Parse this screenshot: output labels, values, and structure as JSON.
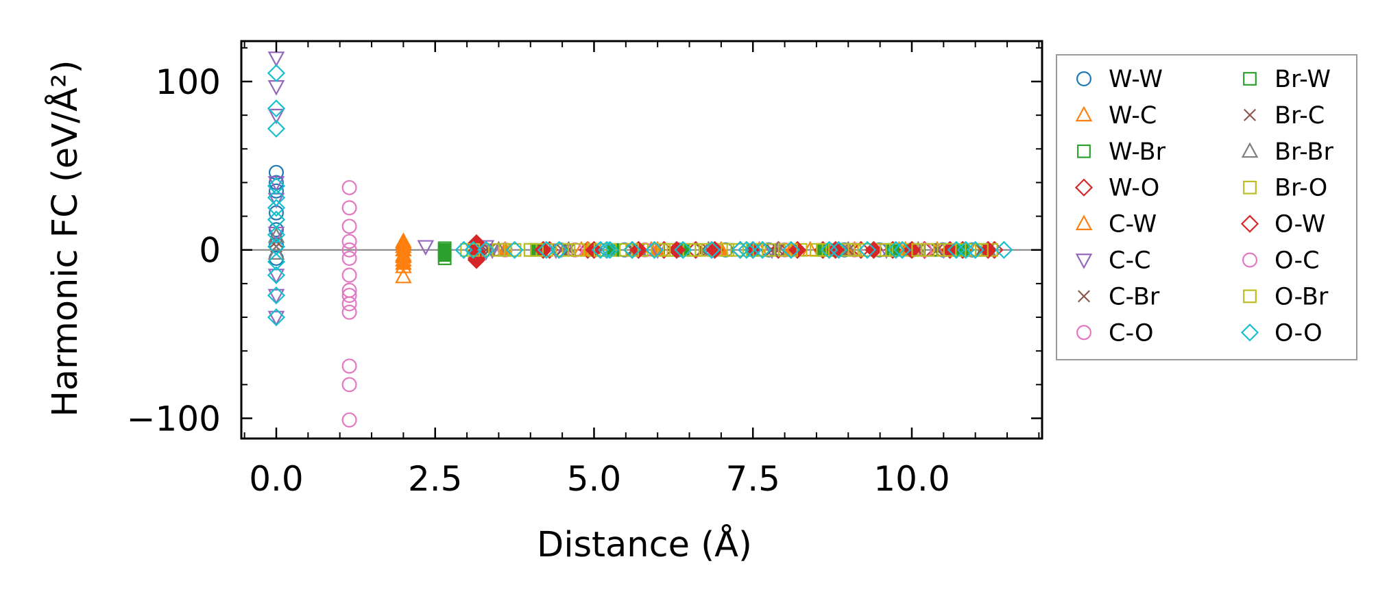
{
  "chart_data": {
    "type": "scatter",
    "title": "",
    "xlabel": "Distance (Å)",
    "ylabel": "Harmonic FC (eV/Å²)",
    "xlim": [
      -0.55,
      12.05
    ],
    "ylim": [
      -112,
      124
    ],
    "xticks": [
      0.0,
      2.5,
      5.0,
      7.5,
      10.0
    ],
    "xtick_labels": [
      "0.0",
      "2.5",
      "5.0",
      "7.5",
      "10.0"
    ],
    "yticks": [
      -100,
      0,
      100
    ],
    "ytick_labels": [
      "−100",
      "0",
      "100"
    ],
    "zero_line": true,
    "grid": false,
    "legend_position": "outside right",
    "series": [
      {
        "name": "W-W",
        "marker": "circle",
        "color": "#1f77b4",
        "filled": false,
        "points": [
          [
            0,
            46
          ],
          [
            0,
            40
          ],
          [
            0,
            35
          ],
          [
            0,
            22
          ],
          [
            0,
            12
          ],
          [
            0,
            3
          ],
          [
            0,
            -5
          ],
          [
            3.16,
            0
          ],
          [
            4.47,
            0
          ],
          [
            5.48,
            0
          ],
          [
            6.32,
            0
          ],
          [
            7.07,
            0
          ],
          [
            7.75,
            0
          ],
          [
            8.94,
            0
          ],
          [
            9.49,
            0
          ],
          [
            10.0,
            0
          ],
          [
            10.49,
            0
          ],
          [
            10.95,
            0
          ]
        ]
      },
      {
        "name": "W-C",
        "marker": "triangle-up",
        "color": "#ff7f0e",
        "filled": false,
        "points": [
          [
            2.0,
            5
          ],
          [
            2.0,
            2
          ],
          [
            2.0,
            -3
          ],
          [
            2.0,
            -6
          ],
          [
            2.0,
            -10
          ],
          [
            2.0,
            -16
          ],
          [
            3.5,
            0
          ],
          [
            4.8,
            0
          ],
          [
            5.9,
            0
          ],
          [
            6.8,
            0
          ],
          [
            7.6,
            0
          ],
          [
            8.4,
            0
          ],
          [
            9.1,
            0
          ],
          [
            9.8,
            0
          ],
          [
            10.4,
            0
          ],
          [
            11.0,
            0
          ]
        ]
      },
      {
        "name": "W-Br",
        "marker": "square",
        "color": "#2ca02c",
        "filled": false,
        "points": [
          [
            2.65,
            1
          ],
          [
            2.65,
            -2
          ],
          [
            2.65,
            -5
          ],
          [
            4.0,
            0
          ],
          [
            5.1,
            0
          ],
          [
            6.2,
            0
          ],
          [
            7.1,
            0
          ],
          [
            8.0,
            0
          ],
          [
            8.8,
            0
          ],
          [
            9.6,
            0
          ],
          [
            10.3,
            0
          ],
          [
            11.1,
            0
          ]
        ]
      },
      {
        "name": "W-O",
        "marker": "diamond",
        "color": "#d62728",
        "filled": false,
        "points": [
          [
            3.15,
            3
          ],
          [
            3.15,
            -2
          ],
          [
            3.15,
            -5
          ],
          [
            4.3,
            0
          ],
          [
            4.9,
            0
          ],
          [
            5.6,
            0
          ],
          [
            6.1,
            0
          ],
          [
            6.6,
            0
          ],
          [
            7.3,
            0
          ],
          [
            7.9,
            0
          ],
          [
            8.6,
            0
          ],
          [
            9.2,
            0
          ],
          [
            9.7,
            0
          ],
          [
            10.2,
            0
          ],
          [
            10.8,
            0
          ],
          [
            11.3,
            0
          ]
        ]
      },
      {
        "name": "C-W",
        "marker": "triangle-up",
        "color": "#ff7f0e",
        "filled": true,
        "points": [
          [
            2.0,
            4
          ],
          [
            2.0,
            0
          ],
          [
            2.0,
            -4
          ],
          [
            2.0,
            -8
          ],
          [
            3.6,
            0
          ],
          [
            4.9,
            0
          ],
          [
            6.0,
            0
          ],
          [
            7.0,
            0
          ],
          [
            8.1,
            0
          ],
          [
            9.0,
            0
          ],
          [
            9.9,
            0
          ],
          [
            10.7,
            0
          ]
        ]
      },
      {
        "name": "C-C",
        "marker": "triangle-down",
        "color": "#9467bd",
        "filled": false,
        "points": [
          [
            0,
            114
          ],
          [
            0,
            97
          ],
          [
            0,
            80
          ],
          [
            0,
            40
          ],
          [
            0,
            30
          ],
          [
            0,
            10
          ],
          [
            0,
            -15
          ],
          [
            0,
            -27
          ],
          [
            0,
            -40
          ],
          [
            2.35,
            2
          ],
          [
            3.3,
            2
          ],
          [
            3.3,
            -1
          ],
          [
            3.4,
            0
          ],
          [
            4.4,
            0
          ],
          [
            5.2,
            0
          ],
          [
            6.0,
            0
          ],
          [
            6.9,
            0
          ],
          [
            7.8,
            0
          ],
          [
            8.7,
            0
          ],
          [
            9.6,
            0
          ],
          [
            10.5,
            0
          ]
        ]
      },
      {
        "name": "C-Br",
        "marker": "x",
        "color": "#8c564b",
        "filled": false,
        "points": [
          [
            0,
            5
          ],
          [
            3.3,
            0
          ],
          [
            4.5,
            0
          ],
          [
            5.6,
            0
          ],
          [
            6.7,
            0
          ],
          [
            7.8,
            0
          ],
          [
            8.9,
            0
          ],
          [
            10.0,
            0
          ],
          [
            10.4,
            0
          ],
          [
            11.1,
            0
          ]
        ]
      },
      {
        "name": "C-O",
        "marker": "circle",
        "color": "#e377c2",
        "filled": false,
        "points": [
          [
            1.15,
            0
          ],
          [
            3.6,
            0
          ],
          [
            4.7,
            0
          ],
          [
            5.8,
            0
          ],
          [
            6.9,
            0
          ],
          [
            8.0,
            0
          ],
          [
            9.1,
            0
          ],
          [
            10.2,
            0
          ]
        ]
      },
      {
        "name": "Br-W",
        "marker": "square",
        "color": "#2ca02c",
        "filled": true,
        "points": [
          [
            2.65,
            0
          ],
          [
            2.65,
            -3
          ],
          [
            4.1,
            0
          ],
          [
            5.3,
            0
          ],
          [
            6.4,
            0
          ],
          [
            7.5,
            0
          ],
          [
            8.6,
            0
          ],
          [
            9.7,
            0
          ],
          [
            10.8,
            0
          ]
        ]
      },
      {
        "name": "Br-C",
        "marker": "x",
        "color": "#8c564b",
        "filled": false,
        "points": [
          [
            0,
            2
          ],
          [
            3.35,
            0
          ],
          [
            4.6,
            0
          ],
          [
            5.7,
            0
          ],
          [
            6.8,
            0
          ],
          [
            7.9,
            0
          ],
          [
            9.0,
            0
          ],
          [
            10.1,
            0
          ],
          [
            11.2,
            0
          ]
        ]
      },
      {
        "name": "Br-Br",
        "marker": "triangle-up",
        "color": "#7f7f7f",
        "filled": false,
        "points": [
          [
            0,
            8
          ],
          [
            0,
            -2
          ],
          [
            3.5,
            0
          ],
          [
            4.6,
            0
          ],
          [
            5.7,
            0
          ],
          [
            6.8,
            0
          ],
          [
            7.9,
            0
          ],
          [
            9.0,
            0
          ],
          [
            10.1,
            0
          ],
          [
            11.2,
            0
          ]
        ]
      },
      {
        "name": "Br-O",
        "marker": "square",
        "color": "#bcbd22",
        "filled": false,
        "points": [
          [
            3.0,
            0
          ],
          [
            3.25,
            0
          ],
          [
            3.5,
            0
          ],
          [
            3.75,
            0
          ],
          [
            4.0,
            0
          ],
          [
            4.25,
            0
          ],
          [
            4.5,
            0
          ],
          [
            4.75,
            0
          ],
          [
            5.0,
            0
          ],
          [
            5.25,
            0
          ],
          [
            5.5,
            0
          ],
          [
            5.75,
            0
          ],
          [
            6.0,
            0
          ],
          [
            6.25,
            0
          ],
          [
            6.5,
            0
          ],
          [
            6.75,
            0
          ],
          [
            7.0,
            0
          ],
          [
            7.25,
            0
          ],
          [
            7.5,
            0
          ],
          [
            7.75,
            0
          ],
          [
            8.0,
            0
          ],
          [
            8.25,
            0
          ],
          [
            8.5,
            0
          ],
          [
            8.75,
            0
          ],
          [
            9.0,
            0
          ],
          [
            9.25,
            0
          ],
          [
            9.5,
            0
          ],
          [
            9.75,
            0
          ],
          [
            10.0,
            0
          ],
          [
            10.25,
            0
          ],
          [
            10.5,
            0
          ],
          [
            10.75,
            0
          ],
          [
            11.0,
            0
          ],
          [
            11.25,
            0
          ]
        ]
      },
      {
        "name": "O-W",
        "marker": "diamond",
        "color": "#d62728",
        "filled": true,
        "points": [
          [
            3.15,
            4
          ],
          [
            3.15,
            -1
          ],
          [
            3.15,
            -6
          ],
          [
            4.2,
            0
          ],
          [
            5.0,
            0
          ],
          [
            5.7,
            0
          ],
          [
            6.3,
            0
          ],
          [
            6.9,
            0
          ],
          [
            7.5,
            0
          ],
          [
            8.2,
            0
          ],
          [
            8.8,
            0
          ],
          [
            9.4,
            0
          ],
          [
            10.0,
            0
          ],
          [
            10.6,
            0
          ],
          [
            11.2,
            0
          ]
        ]
      },
      {
        "name": "O-C",
        "marker": "circle",
        "color": "#e377c2",
        "filled": false,
        "points": [
          [
            1.15,
            37
          ],
          [
            1.15,
            25
          ],
          [
            1.15,
            14
          ],
          [
            1.15,
            5
          ],
          [
            1.15,
            -5
          ],
          [
            1.15,
            -15
          ],
          [
            1.15,
            -24
          ],
          [
            1.15,
            -27
          ],
          [
            1.15,
            -32
          ],
          [
            1.15,
            -37
          ],
          [
            1.15,
            -69
          ],
          [
            1.15,
            -80
          ],
          [
            1.15,
            -101
          ]
        ]
      },
      {
        "name": "O-Br",
        "marker": "square",
        "color": "#bcbd22",
        "filled": false,
        "points": [
          [
            3.1,
            0
          ],
          [
            3.6,
            0
          ],
          [
            4.1,
            0
          ],
          [
            4.6,
            0
          ],
          [
            5.1,
            0
          ],
          [
            5.6,
            0
          ],
          [
            6.1,
            0
          ],
          [
            6.6,
            0
          ],
          [
            7.1,
            0
          ],
          [
            7.6,
            0
          ],
          [
            8.1,
            0
          ],
          [
            8.6,
            0
          ],
          [
            9.1,
            0
          ],
          [
            9.6,
            0
          ],
          [
            10.1,
            0
          ],
          [
            10.6,
            0
          ],
          [
            11.1,
            0
          ]
        ]
      },
      {
        "name": "O-O",
        "marker": "diamond",
        "color": "#17becf",
        "filled": false,
        "points": [
          [
            0,
            105
          ],
          [
            0,
            84
          ],
          [
            0,
            72
          ],
          [
            0,
            38
          ],
          [
            0,
            31
          ],
          [
            0,
            25
          ],
          [
            0,
            18
          ],
          [
            0,
            9
          ],
          [
            0,
            2
          ],
          [
            0,
            -7
          ],
          [
            0,
            -15
          ],
          [
            0,
            -27
          ],
          [
            0,
            -40
          ],
          [
            2.95,
            0
          ],
          [
            3.1,
            0
          ],
          [
            3.3,
            0
          ],
          [
            3.75,
            0
          ],
          [
            4.25,
            0
          ],
          [
            4.45,
            0
          ],
          [
            5.1,
            0
          ],
          [
            5.2,
            0
          ],
          [
            5.25,
            0
          ],
          [
            5.6,
            0
          ],
          [
            5.95,
            0
          ],
          [
            6.4,
            0
          ],
          [
            6.85,
            0
          ],
          [
            7.3,
            0
          ],
          [
            7.4,
            0
          ],
          [
            7.5,
            0
          ],
          [
            7.65,
            0
          ],
          [
            8.1,
            0
          ],
          [
            8.7,
            0
          ],
          [
            8.85,
            0
          ],
          [
            9.3,
            0
          ],
          [
            9.75,
            0
          ],
          [
            9.85,
            0
          ],
          [
            10.7,
            0
          ],
          [
            10.85,
            0
          ],
          [
            11.0,
            0
          ],
          [
            11.45,
            0
          ]
        ]
      }
    ]
  }
}
